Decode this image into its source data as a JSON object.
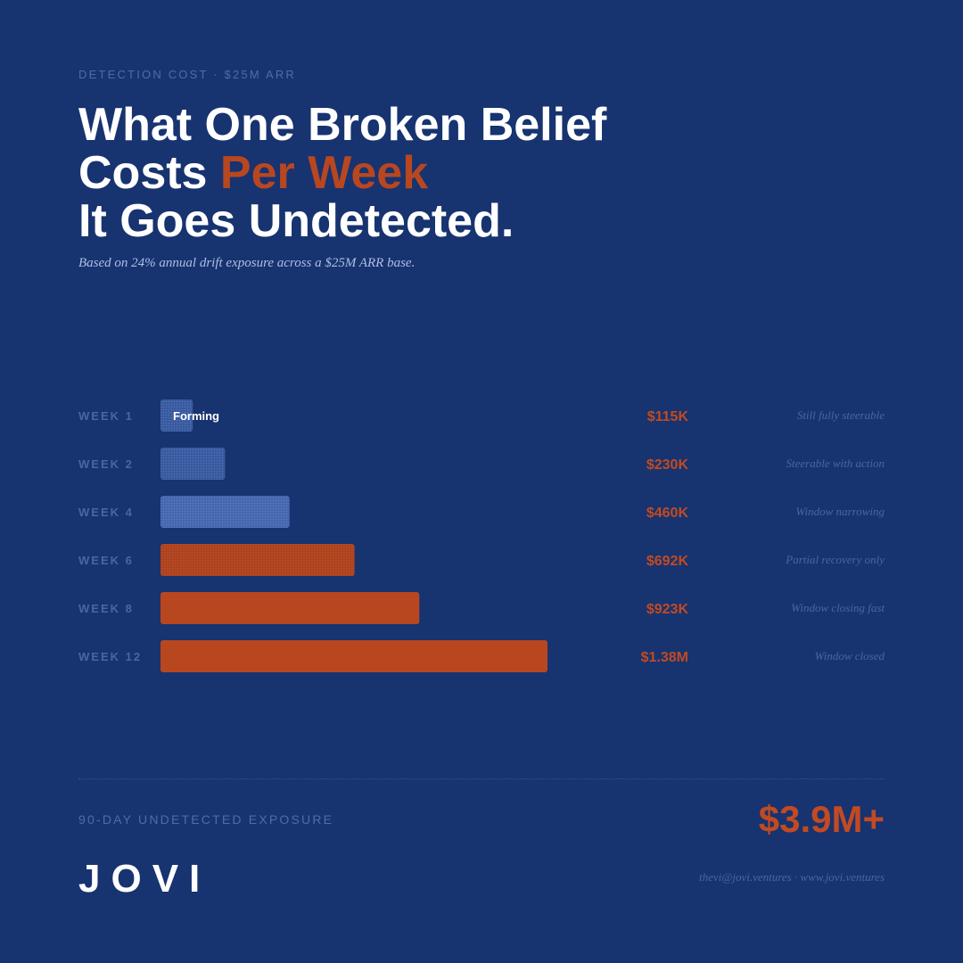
{
  "header": {
    "kicker": "DETECTION COST · $25M ARR",
    "title_line1": "What One Broken Belief",
    "title_line2_pre": "Costs ",
    "title_line2_accent": "Per Week",
    "title_line3": "It Goes Undetected.",
    "subtitle": "Based on 24% annual drift exposure across a $25M ARR base."
  },
  "chart_data": {
    "type": "bar",
    "orientation": "horizontal",
    "categories": [
      "WEEK 1",
      "WEEK 2",
      "WEEK 4",
      "WEEK 6",
      "WEEK 8",
      "WEEK 12"
    ],
    "values": [
      115,
      230,
      460,
      692,
      923,
      1380
    ],
    "unit": "$K",
    "value_labels": [
      "$115K",
      "$230K",
      "$460K",
      "$692K",
      "$923K",
      "$1.38M"
    ],
    "bar_annotations": [
      "Forming",
      "",
      "",
      "",
      "",
      ""
    ],
    "notes": [
      "Still fully steerable",
      "Steerable with action",
      "Window narrowing",
      "Partial recovery only",
      "Window closing fast",
      "Window closed"
    ],
    "bar_colors": [
      "#3c5da1",
      "#3c5da1",
      "#4a70b8",
      "#b84720",
      "#b84720",
      "#b84720"
    ],
    "bar_styles": [
      "textured",
      "textured",
      "textured",
      "textured",
      "solid",
      "solid"
    ],
    "grid": false,
    "legend": "none"
  },
  "footer": {
    "total_label": "90-DAY UNDETECTED EXPOSURE",
    "total_value": "$3.9M+",
    "brand": "JOVI",
    "contact": "thevi@jovi.ventures · www.jovi.ventures"
  },
  "colors": {
    "background": "#173370",
    "accent": "#b84720",
    "accent_text": "#c24a22",
    "muted": "#4866a6",
    "subtitle": "#aebfe2"
  }
}
